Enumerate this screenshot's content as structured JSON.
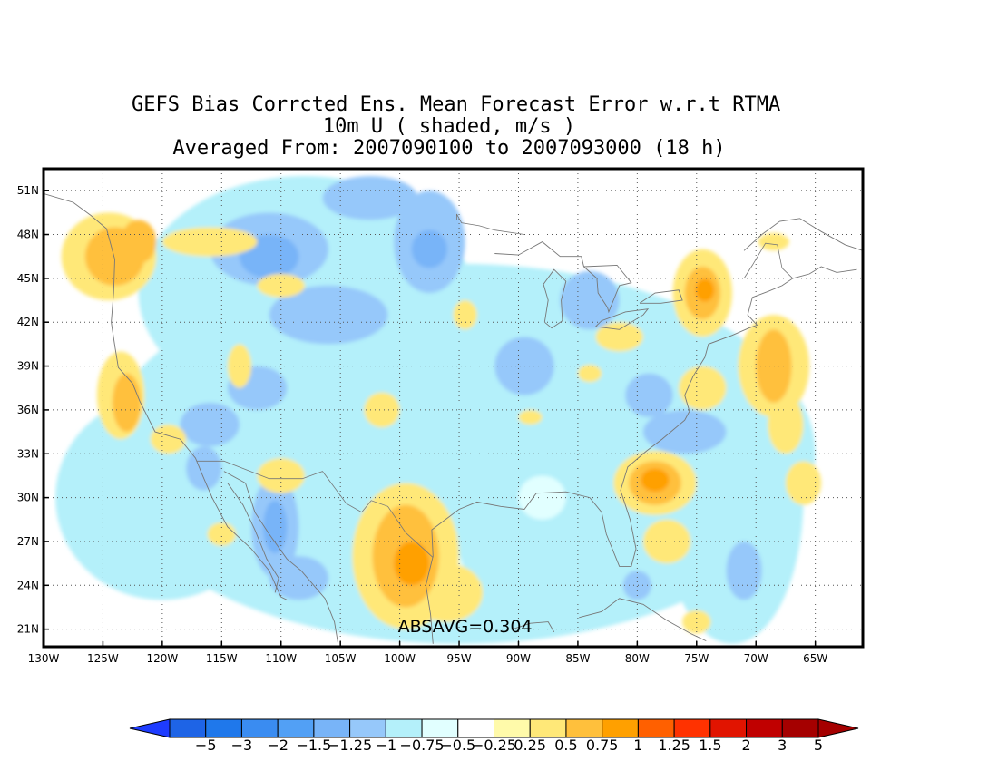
{
  "title": {
    "line1": "GEFS Bias Corrcted Ens. Mean Forecast Error w.r.t RTMA",
    "line2": "10m U ( shaded, m/s )",
    "line3": "Averaged From: 2007090100 to 2007093000 (18 h)"
  },
  "map": {
    "lon_range": [
      -130,
      -61
    ],
    "lat_range": [
      19.8,
      52.5
    ],
    "lon_ticks": [
      {
        "value": -130,
        "label": "130W"
      },
      {
        "value": -125,
        "label": "125W"
      },
      {
        "value": -120,
        "label": "120W"
      },
      {
        "value": -115,
        "label": "115W"
      },
      {
        "value": -110,
        "label": "110W"
      },
      {
        "value": -105,
        "label": "105W"
      },
      {
        "value": -100,
        "label": "100W"
      },
      {
        "value": -95,
        "label": "95W"
      },
      {
        "value": -90,
        "label": "90W"
      },
      {
        "value": -85,
        "label": "85W"
      },
      {
        "value": -80,
        "label": "80W"
      },
      {
        "value": -75,
        "label": "75W"
      },
      {
        "value": -70,
        "label": "70W"
      },
      {
        "value": -65,
        "label": "65W"
      }
    ],
    "lat_ticks": [
      {
        "value": 21,
        "label": "21N"
      },
      {
        "value": 24,
        "label": "24N"
      },
      {
        "value": 27,
        "label": "27N"
      },
      {
        "value": 30,
        "label": "30N"
      },
      {
        "value": 33,
        "label": "33N"
      },
      {
        "value": 36,
        "label": "36N"
      },
      {
        "value": 39,
        "label": "39N"
      },
      {
        "value": 42,
        "label": "42N"
      },
      {
        "value": 45,
        "label": "45N"
      },
      {
        "value": 48,
        "label": "48N"
      },
      {
        "value": 51,
        "label": "51N"
      }
    ],
    "absavg": "ABSAVG=0.304",
    "absavg_position": {
      "lon": -94.5,
      "lat": 20.8
    },
    "shaded_blobs": [
      {
        "lon": -95,
        "lat": 33,
        "rx": 30,
        "ry": 13,
        "level": 6
      },
      {
        "lon": -108,
        "lat": 44,
        "rx": 14,
        "ry": 8,
        "level": 6
      },
      {
        "lon": -120,
        "lat": 30,
        "rx": 9,
        "ry": 7,
        "level": 6
      },
      {
        "lon": -72,
        "lat": 30,
        "rx": 6,
        "ry": 10,
        "level": 6
      },
      {
        "lon": -111,
        "lat": 47,
        "rx": 5,
        "ry": 2.5,
        "level": 5
      },
      {
        "lon": -111,
        "lat": 46.5,
        "rx": 2.5,
        "ry": 1.5,
        "level": 4
      },
      {
        "lon": -97.5,
        "lat": 47.5,
        "rx": 3,
        "ry": 3.5,
        "level": 5
      },
      {
        "lon": -97.5,
        "lat": 47,
        "rx": 1.5,
        "ry": 1.3,
        "level": 4
      },
      {
        "lon": -102.5,
        "lat": 50.5,
        "rx": 4,
        "ry": 1.5,
        "level": 5
      },
      {
        "lon": -106,
        "lat": 42.5,
        "rx": 5,
        "ry": 2,
        "level": 5
      },
      {
        "lon": -112,
        "lat": 37.5,
        "rx": 2.5,
        "ry": 1.5,
        "level": 5
      },
      {
        "lon": -116,
        "lat": 35,
        "rx": 2.5,
        "ry": 1.5,
        "level": 5
      },
      {
        "lon": -110.5,
        "lat": 28,
        "rx": 2,
        "ry": 3.5,
        "level": 5
      },
      {
        "lon": -110.5,
        "lat": 28,
        "rx": 1,
        "ry": 1.8,
        "level": 4
      },
      {
        "lon": -108.5,
        "lat": 24.5,
        "rx": 2.5,
        "ry": 1.5,
        "level": 5
      },
      {
        "lon": -116.5,
        "lat": 32,
        "rx": 1.5,
        "ry": 1.5,
        "level": 5
      },
      {
        "lon": -89.5,
        "lat": 39,
        "rx": 2.5,
        "ry": 2,
        "level": 5
      },
      {
        "lon": -84,
        "lat": 43.5,
        "rx": 2.5,
        "ry": 2,
        "level": 5
      },
      {
        "lon": -76,
        "lat": 34.5,
        "rx": 3.5,
        "ry": 1.5,
        "level": 5
      },
      {
        "lon": -79,
        "lat": 37,
        "rx": 2,
        "ry": 1.5,
        "level": 5
      },
      {
        "lon": -71,
        "lat": 25,
        "rx": 1.5,
        "ry": 2,
        "level": 5
      },
      {
        "lon": -80,
        "lat": 24,
        "rx": 1.2,
        "ry": 1,
        "level": 5
      },
      {
        "lon": -98,
        "lat": 24.5,
        "rx": 3.5,
        "ry": 3,
        "level": 7
      },
      {
        "lon": -88,
        "lat": 30,
        "rx": 2,
        "ry": 1.5,
        "level": 7
      },
      {
        "lon": -124.5,
        "lat": 46.5,
        "rx": 4,
        "ry": 3,
        "level": 10
      },
      {
        "lon": -116,
        "lat": 47.5,
        "rx": 4,
        "ry": 1,
        "level": 10
      },
      {
        "lon": -110,
        "lat": 44.5,
        "rx": 2,
        "ry": 0.8,
        "level": 10
      },
      {
        "lon": -123.5,
        "lat": 37,
        "rx": 2,
        "ry": 3,
        "level": 10
      },
      {
        "lon": -119.5,
        "lat": 34,
        "rx": 1.5,
        "ry": 1,
        "level": 10
      },
      {
        "lon": -113.5,
        "lat": 39,
        "rx": 1,
        "ry": 1.5,
        "level": 10
      },
      {
        "lon": -110,
        "lat": 31.5,
        "rx": 2,
        "ry": 1.2,
        "level": 10
      },
      {
        "lon": -101.5,
        "lat": 36,
        "rx": 1.5,
        "ry": 1.2,
        "level": 10
      },
      {
        "lon": -99.5,
        "lat": 26,
        "rx": 4.5,
        "ry": 5,
        "level": 10
      },
      {
        "lon": -96,
        "lat": 23.5,
        "rx": 3,
        "ry": 2,
        "level": 10
      },
      {
        "lon": -94.5,
        "lat": 42.5,
        "rx": 1,
        "ry": 1,
        "level": 10
      },
      {
        "lon": -89,
        "lat": 35.5,
        "rx": 1,
        "ry": 0.5,
        "level": 10
      },
      {
        "lon": -84,
        "lat": 38.5,
        "rx": 1,
        "ry": 0.6,
        "level": 10
      },
      {
        "lon": -81.5,
        "lat": 41,
        "rx": 2,
        "ry": 1,
        "level": 10
      },
      {
        "lon": -78.5,
        "lat": 31,
        "rx": 3.5,
        "ry": 2.2,
        "level": 10
      },
      {
        "lon": -77.5,
        "lat": 27,
        "rx": 2,
        "ry": 1.5,
        "level": 10
      },
      {
        "lon": -74.5,
        "lat": 44,
        "rx": 2.5,
        "ry": 3,
        "level": 10
      },
      {
        "lon": -74.5,
        "lat": 37.5,
        "rx": 2,
        "ry": 1.5,
        "level": 10
      },
      {
        "lon": -68.5,
        "lat": 39,
        "rx": 3,
        "ry": 3.5,
        "level": 10
      },
      {
        "lon": -67.5,
        "lat": 35,
        "rx": 1.5,
        "ry": 2,
        "level": 10
      },
      {
        "lon": -66,
        "lat": 31,
        "rx": 1.5,
        "ry": 1.5,
        "level": 10
      },
      {
        "lon": -75,
        "lat": 21.5,
        "rx": 1.2,
        "ry": 0.8,
        "level": 10
      },
      {
        "lon": -68.5,
        "lat": 47.5,
        "rx": 1.3,
        "ry": 0.6,
        "level": 10
      },
      {
        "lon": -115,
        "lat": 27.5,
        "rx": 1.2,
        "ry": 0.8,
        "level": 10
      },
      {
        "lon": -124,
        "lat": 46.5,
        "rx": 2.5,
        "ry": 2,
        "level": 11
      },
      {
        "lon": -122,
        "lat": 47.5,
        "rx": 1.5,
        "ry": 1.5,
        "level": 11
      },
      {
        "lon": -123,
        "lat": 36.5,
        "rx": 1.2,
        "ry": 2,
        "level": 11
      },
      {
        "lon": -99.5,
        "lat": 26,
        "rx": 2.8,
        "ry": 3.5,
        "level": 11
      },
      {
        "lon": -78.5,
        "lat": 31,
        "rx": 2.2,
        "ry": 1.5,
        "level": 11
      },
      {
        "lon": -74.5,
        "lat": 44,
        "rx": 1.5,
        "ry": 1.8,
        "level": 11
      },
      {
        "lon": -68.5,
        "lat": 39,
        "rx": 1.5,
        "ry": 2.5,
        "level": 11
      },
      {
        "lon": -99,
        "lat": 25.5,
        "rx": 1.5,
        "ry": 1.5,
        "level": 12
      },
      {
        "lon": -78.5,
        "lat": 31.2,
        "rx": 1.2,
        "ry": 0.8,
        "level": 12
      },
      {
        "lon": -74.3,
        "lat": 44.2,
        "rx": 0.8,
        "ry": 0.8,
        "level": 12
      }
    ],
    "coastlines": [
      [
        [
          -130,
          50.8
        ],
        [
          -127.5,
          50.2
        ],
        [
          -126,
          49.3
        ],
        [
          -124.7,
          48.4
        ],
        [
          -124,
          46.3
        ],
        [
          -124.1,
          44
        ],
        [
          -124.3,
          42
        ],
        [
          -124,
          40.4
        ],
        [
          -123.7,
          38.9
        ],
        [
          -122.5,
          37.8
        ],
        [
          -121.9,
          36.6
        ],
        [
          -120.6,
          34.5
        ],
        [
          -118.5,
          34
        ],
        [
          -117.2,
          32.7
        ],
        [
          -116.6,
          31.5
        ],
        [
          -115.8,
          30
        ],
        [
          -114.5,
          28
        ],
        [
          -112.5,
          26.5
        ],
        [
          -111,
          25
        ],
        [
          -110,
          23.2
        ],
        [
          -109.5,
          23
        ]
      ],
      [
        [
          -114.8,
          31.8
        ],
        [
          -113,
          31
        ],
        [
          -112.2,
          29
        ],
        [
          -111,
          27.5
        ],
        [
          -109.5,
          25.8
        ],
        [
          -108.3,
          25
        ],
        [
          -106.3,
          23.1
        ],
        [
          -105.5,
          21.5
        ],
        [
          -105.2,
          20
        ]
      ],
      [
        [
          -97.2,
          20
        ],
        [
          -97.4,
          22
        ],
        [
          -97.8,
          24
        ],
        [
          -97.2,
          26
        ],
        [
          -97.3,
          27.8
        ],
        [
          -95,
          29.2
        ],
        [
          -93.5,
          29.7
        ],
        [
          -91.5,
          29.4
        ],
        [
          -89.5,
          29.2
        ],
        [
          -88.5,
          30.3
        ],
        [
          -86,
          30.4
        ],
        [
          -84,
          30
        ],
        [
          -83,
          29
        ],
        [
          -82.6,
          27.5
        ],
        [
          -81.5,
          25.3
        ],
        [
          -80.5,
          25.3
        ],
        [
          -80.1,
          26.5
        ],
        [
          -80.6,
          28.5
        ],
        [
          -81.4,
          30.5
        ],
        [
          -80.8,
          32.1
        ],
        [
          -79.2,
          33.2
        ],
        [
          -77.9,
          34
        ],
        [
          -76,
          35.3
        ],
        [
          -75.6,
          35.9
        ],
        [
          -76,
          37
        ],
        [
          -75.3,
          38.3
        ],
        [
          -74.3,
          39.6
        ],
        [
          -74,
          40.5
        ],
        [
          -72,
          41.1
        ],
        [
          -70.6,
          41.6
        ],
        [
          -69.9,
          41.8
        ],
        [
          -70.7,
          42.5
        ],
        [
          -70.3,
          43.7
        ],
        [
          -69,
          44.1
        ],
        [
          -67.8,
          44.5
        ],
        [
          -66.9,
          45
        ],
        [
          -65.5,
          45.3
        ],
        [
          -64.5,
          45.8
        ],
        [
          -63.2,
          45.4
        ],
        [
          -61.5,
          45.6
        ]
      ],
      [
        [
          -61,
          46.9
        ],
        [
          -62.5,
          47.3
        ],
        [
          -64.5,
          48.2
        ],
        [
          -66.3,
          49.1
        ],
        [
          -68,
          48.9
        ],
        [
          -69.5,
          48
        ],
        [
          -71,
          46.9
        ]
      ],
      [
        [
          -92,
          46.7
        ],
        [
          -90,
          46.6
        ],
        [
          -88,
          47.5
        ],
        [
          -86.5,
          46.5
        ],
        [
          -84.7,
          46.5
        ],
        [
          -84.5,
          45.8
        ]
      ],
      [
        [
          -87.8,
          42
        ],
        [
          -87.5,
          43.5
        ],
        [
          -87.9,
          44.6
        ],
        [
          -87,
          45.6
        ],
        [
          -86,
          44.8
        ],
        [
          -86.4,
          43.5
        ],
        [
          -86.3,
          42.1
        ],
        [
          -87.2,
          41.6
        ],
        [
          -87.8,
          42
        ]
      ],
      [
        [
          -84.5,
          45.8
        ],
        [
          -83.4,
          45
        ],
        [
          -83.3,
          44
        ],
        [
          -82.5,
          43
        ],
        [
          -82.4,
          42.7
        ],
        [
          -81.5,
          44.5
        ],
        [
          -80.5,
          44.7
        ],
        [
          -81.7,
          45.9
        ],
        [
          -84.5,
          45.8
        ]
      ],
      [
        [
          -83.5,
          41.7
        ],
        [
          -81.5,
          41.5
        ],
        [
          -79.5,
          42.5
        ],
        [
          -79.1,
          42.9
        ],
        [
          -81,
          42.7
        ],
        [
          -83,
          42.1
        ],
        [
          -83.5,
          41.7
        ]
      ],
      [
        [
          -79.8,
          43.3
        ],
        [
          -78,
          43.3
        ],
        [
          -76.2,
          43.5
        ],
        [
          -76.5,
          44.2
        ],
        [
          -78.5,
          44
        ],
        [
          -79.8,
          43.3
        ]
      ],
      [
        [
          -84.9,
          21.8
        ],
        [
          -83,
          22.2
        ],
        [
          -81.5,
          23.1
        ],
        [
          -79.5,
          22.7
        ],
        [
          -77.5,
          21.6
        ],
        [
          -75.5,
          20.7
        ],
        [
          -74.2,
          20.2
        ]
      ],
      [
        [
          -90.5,
          21
        ],
        [
          -89,
          21.4
        ],
        [
          -87.5,
          21.5
        ],
        [
          -87,
          20.8
        ]
      ],
      [
        [
          -110.5,
          23.5
        ],
        [
          -110.2,
          24.5
        ],
        [
          -111.2,
          25.8
        ],
        [
          -112.2,
          27.8
        ],
        [
          -113.2,
          29.5
        ],
        [
          -114.5,
          31
        ]
      ]
    ],
    "borders": [
      [
        [
          -123.3,
          49
        ],
        [
          -95.2,
          49
        ],
        [
          -95.2,
          49.4
        ],
        [
          -94.8,
          48.8
        ],
        [
          -93.3,
          48.6
        ],
        [
          -92,
          48.3
        ],
        [
          -89.5,
          48
        ]
      ],
      [
        [
          -117.1,
          32.5
        ],
        [
          -114.8,
          32.5
        ],
        [
          -111,
          31.3
        ],
        [
          -108.2,
          31.3
        ],
        [
          -106.5,
          31.8
        ],
        [
          -104.5,
          29.6
        ],
        [
          -103.2,
          29
        ],
        [
          -102.4,
          29.8
        ],
        [
          -101,
          29.4
        ],
        [
          -99.5,
          27.6
        ],
        [
          -97.2,
          25.9
        ]
      ],
      [
        [
          -71,
          45
        ],
        [
          -70.3,
          45.9
        ],
        [
          -69.2,
          47.4
        ],
        [
          -68.2,
          47.3
        ],
        [
          -67.8,
          45.7
        ],
        [
          -66.9,
          45
        ]
      ]
    ]
  },
  "colorbar": {
    "labels": [
      "−5",
      "−3",
      "−2",
      "−1.5",
      "−1.25",
      "−1",
      "−0.75",
      "−0.5",
      "−0.25",
      "0.25",
      "0.5",
      "0.75",
      "1",
      "1.25",
      "1.5",
      "2",
      "3",
      "5"
    ],
    "colors": [
      "#1e64e6",
      "#1f78eb",
      "#3a8cf1",
      "#52a0f5",
      "#78b4f8",
      "#96c8fa",
      "#b4f0fa",
      "#e1ffff",
      "#ffffff",
      "#fffaaa",
      "#ffe878",
      "#ffc03c",
      "#ffa000",
      "#ff6000",
      "#ff3200",
      "#e11400",
      "#c00000",
      "#a50000"
    ],
    "low_arrow_color": "#1e3cff",
    "high_arrow_color": "#a50000"
  }
}
